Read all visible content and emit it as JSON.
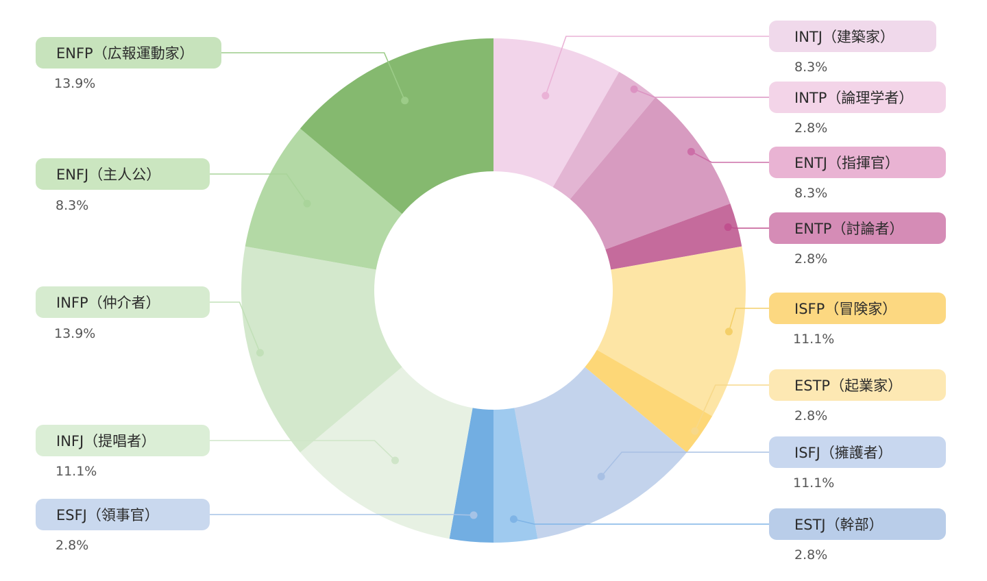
{
  "chart_data": {
    "type": "pie",
    "donut": true,
    "start": "top",
    "direction": "clockwise",
    "slices": [
      {
        "label": "INTJ（建築家）",
        "value": 8.3,
        "value_label": "8.3%",
        "color": "#f2d4ea",
        "pill_color": "#f0d9eb",
        "line_color": "#eab2d6",
        "side": "right"
      },
      {
        "label": "INTP（論理学者）",
        "value": 2.8,
        "value_label": "2.8%",
        "color": "#e3b5d3",
        "pill_color": "#f3d4e8",
        "line_color": "#dc93c2",
        "side": "right"
      },
      {
        "label": "ENTJ（指揮官）",
        "value": 8.3,
        "value_label": "8.3%",
        "color": "#d79bc0",
        "pill_color": "#e9b3d3",
        "line_color": "#cc6ea7",
        "side": "right"
      },
      {
        "label": "ENTP（討論者）",
        "value": 2.8,
        "value_label": "2.8%",
        "color": "#c56b9c",
        "pill_color": "#d58cb6",
        "line_color": "#c0508e",
        "side": "right"
      },
      {
        "label": "ISFP（冒険家）",
        "value": 11.1,
        "value_label": "11.1%",
        "color": "#fde5a5",
        "pill_color": "#fcd881",
        "line_color": "#f4cf68",
        "side": "right"
      },
      {
        "label": "ESTP（起業家）",
        "value": 2.8,
        "value_label": "2.8%",
        "color": "#fdd777",
        "pill_color": "#fde8b3",
        "line_color": "#f7d88a",
        "side": "right"
      },
      {
        "label": "ISFJ（擁護者）",
        "value": 11.1,
        "value_label": "11.1%",
        "color": "#c3d3ec",
        "pill_color": "#c8d7ef",
        "line_color": "#a8c0e4",
        "side": "right"
      },
      {
        "label": "ESTJ（幹部）",
        "value": 2.8,
        "value_label": "2.8%",
        "color": "#9fcaef",
        "pill_color": "#b9cde9",
        "line_color": "#7fb4e6",
        "side": "right"
      },
      {
        "label": "ESFJ（領事官）",
        "value": 2.8,
        "value_label": "2.8%",
        "color": "#72aee2",
        "pill_color": "#c9d8ee",
        "line_color": "#a6c3e6",
        "side": "left"
      },
      {
        "label": "INFJ（提唱者）",
        "value": 11.1,
        "value_label": "11.1%",
        "color": "#e7f1e3",
        "pill_color": "#dbeed6",
        "line_color": "#cfe5c8",
        "side": "left"
      },
      {
        "label": "INFP（仲介者）",
        "value": 13.9,
        "value_label": "13.9%",
        "color": "#d3e8cc",
        "pill_color": "#d6ebcf",
        "line_color": "#c2e0b8",
        "side": "left"
      },
      {
        "label": "ENFJ（主人公）",
        "value": 8.3,
        "value_label": "8.3%",
        "color": "#b3d9a5",
        "pill_color": "#cbe6c0",
        "line_color": "#a9d49a",
        "side": "left"
      },
      {
        "label": "ENFP（広報運動家）",
        "value": 13.9,
        "value_label": "13.9%",
        "color": "#85b96f",
        "pill_color": "#c7e3bc",
        "line_color": "#9ccc88",
        "side": "left"
      }
    ]
  }
}
